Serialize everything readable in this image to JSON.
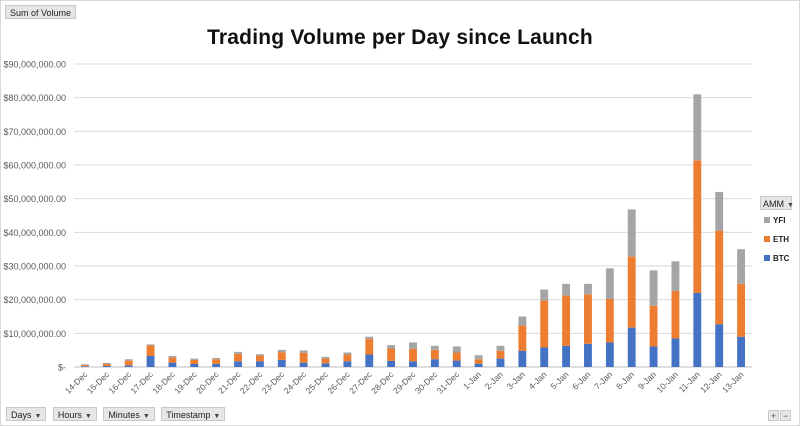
{
  "value_field": {
    "label": "Sum of Volume"
  },
  "row_fields": [
    {
      "label": "Days"
    },
    {
      "label": "Hours"
    },
    {
      "label": "Minutes"
    },
    {
      "label": "Timestamp"
    }
  ],
  "legend_field": {
    "label": "AMM"
  },
  "corner_buttons": {
    "expand": "+",
    "collapse": "−"
  },
  "colors": {
    "BTC": "#4472c4",
    "ETH": "#ed7d31",
    "YFI": "#a5a5a5",
    "grid": "#d9d9d9",
    "axis_text": "#595959"
  },
  "chart_data": {
    "type": "bar",
    "stacked": true,
    "title": "Trading Volume per Day since Launch",
    "xlabel": "",
    "ylabel": "",
    "ylim": [
      0,
      90000000
    ],
    "y_ticks": [
      {
        "value": 0,
        "label": "$-"
      },
      {
        "value": 10000000,
        "label": "$10,000,000.00"
      },
      {
        "value": 20000000,
        "label": "$20,000,000.00"
      },
      {
        "value": 30000000,
        "label": "$30,000,000.00"
      },
      {
        "value": 40000000,
        "label": "$40,000,000.00"
      },
      {
        "value": 50000000,
        "label": "$50,000,000.00"
      },
      {
        "value": 60000000,
        "label": "$60,000,000.00"
      },
      {
        "value": 70000000,
        "label": "$70,000,000.00"
      },
      {
        "value": 80000000,
        "label": "$80,000,000.00"
      },
      {
        "value": 90000000,
        "label": "$90,000,000.00"
      }
    ],
    "grid": true,
    "legend_position": "right",
    "categories": [
      "14-Dec",
      "15-Dec",
      "16-Dec",
      "17-Dec",
      "18-Dec",
      "19-Dec",
      "20-Dec",
      "21-Dec",
      "22-Dec",
      "23-Dec",
      "24-Dec",
      "25-Dec",
      "26-Dec",
      "27-Dec",
      "28-Dec",
      "29-Dec",
      "30-Dec",
      "31-Dec",
      "1-Jan",
      "2-Jan",
      "3-Jan",
      "4-Jan",
      "5-Jan",
      "6-Jan",
      "7-Jan",
      "8-Jan",
      "9-Jan",
      "10-Jan",
      "11-Jan",
      "12-Jan",
      "13-Jan"
    ],
    "series": [
      {
        "name": "BTC",
        "values": [
          200000,
          300000,
          500000,
          3300000,
          1300000,
          900000,
          900000,
          1700000,
          1700000,
          2100000,
          1300000,
          1100000,
          1700000,
          3700000,
          1800000,
          1700000,
          2300000,
          1900000,
          1000000,
          2500000,
          4800000,
          5800000,
          6300000,
          6900000,
          7300000,
          11700000,
          6100000,
          8500000,
          22000000,
          12700000,
          9000000
        ]
      },
      {
        "name": "ETH",
        "values": [
          400000,
          600000,
          1400000,
          3100000,
          1500000,
          1200000,
          1400000,
          2200000,
          1700000,
          2300000,
          2900000,
          1400000,
          2000000,
          4600000,
          3700000,
          3700000,
          2800000,
          2400000,
          1300000,
          2300000,
          7500000,
          14000000,
          14900000,
          14700000,
          12900000,
          21100000,
          12100000,
          14100000,
          39400000,
          27800000,
          15700000
        ]
      },
      {
        "name": "YFI",
        "values": [
          200000,
          300000,
          400000,
          300000,
          500000,
          400000,
          400000,
          600000,
          400000,
          700000,
          700000,
          500000,
          600000,
          700000,
          1000000,
          1900000,
          1200000,
          1800000,
          1200000,
          1500000,
          2700000,
          3200000,
          3500000,
          3100000,
          9100000,
          14000000,
          10500000,
          8800000,
          19600000,
          11500000,
          10300000
        ]
      }
    ]
  }
}
